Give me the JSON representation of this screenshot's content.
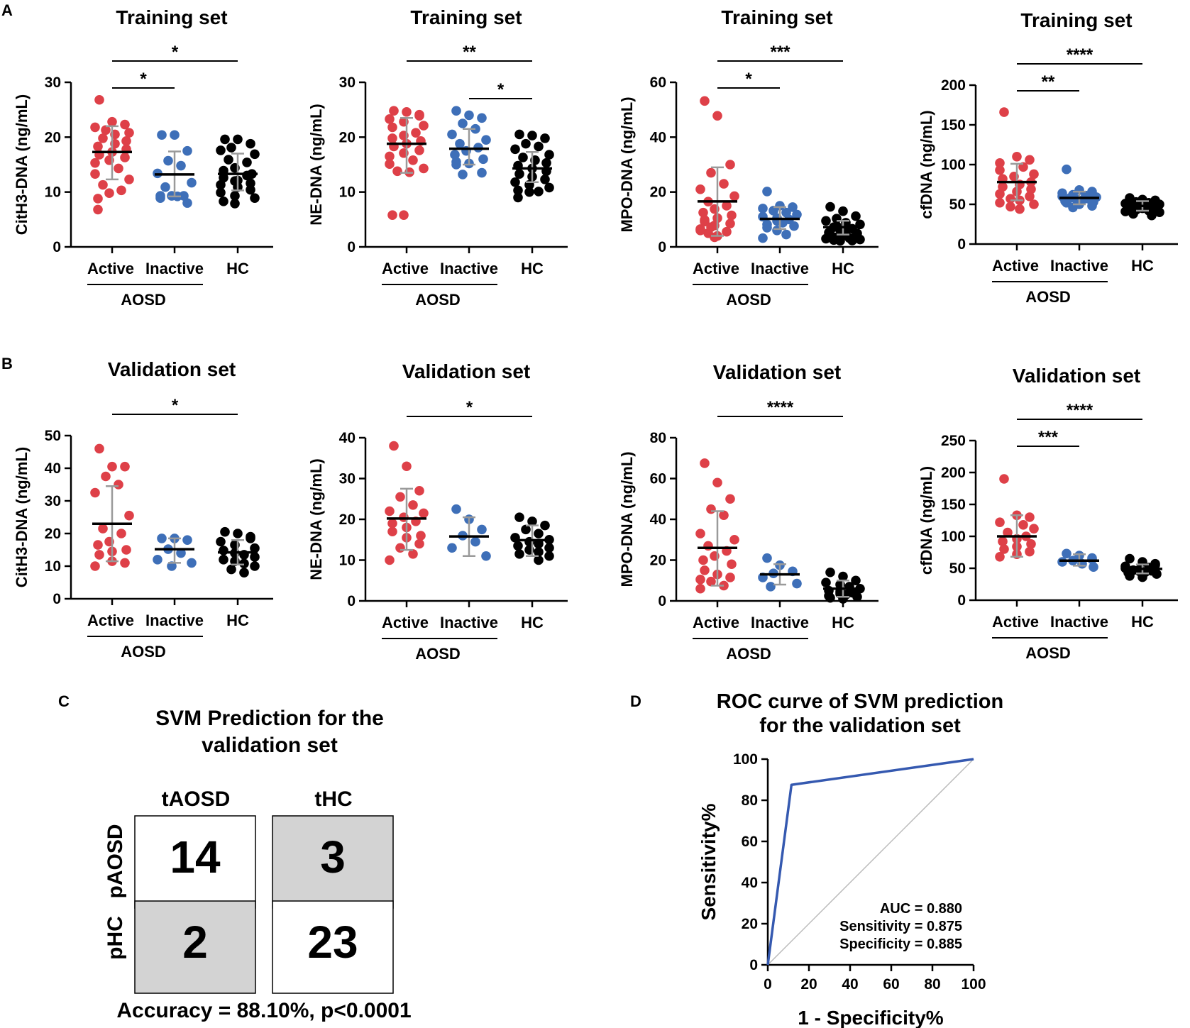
{
  "panel_labels": {
    "a": "A",
    "b": "B",
    "c": "C",
    "d": "D"
  },
  "colors": {
    "active": "#de4048",
    "inactive": "#3e6fb8",
    "hc": "#000000",
    "error_bar": "#9a9a9a",
    "roc_line": "#3559b0",
    "diagonal": "#bbbbbb",
    "cell_gray": "#d3d3d3"
  },
  "group_labels": {
    "active": "Active",
    "inactive": "Inactive",
    "hc": "HC",
    "aosd": "AOSD"
  },
  "chart_data": [
    {
      "id": "train-cith3",
      "type": "scatter",
      "title": "Training set",
      "ylabel": "CitH3-DNA (ng/mL)",
      "ylim": [
        0,
        30
      ],
      "yticks": [
        0,
        10,
        20,
        30
      ],
      "groups": [
        {
          "name": "Active",
          "mean": 17.3,
          "sd_low": 12.3,
          "sd_high": 22.0,
          "values": [
            26.8,
            22.8,
            22.3,
            21.3,
            21.8,
            20.8,
            20.5,
            19.8,
            19.3,
            18.8,
            18.3,
            17.8,
            17.3,
            16.8,
            16.3,
            15.8,
            15.3,
            14.3,
            13.3,
            12.3,
            11.3,
            10.3,
            9.8,
            8.8,
            6.8
          ]
        },
        {
          "name": "Inactive",
          "mean": 13.2,
          "sd_low": 9.2,
          "sd_high": 17.4,
          "values": [
            20.4,
            20.4,
            17.5,
            15.7,
            14.8,
            13.4,
            11.7,
            10.9,
            9.3,
            9.3,
            9.3,
            9.2,
            8.9,
            8.0
          ]
        },
        {
          "name": "HC",
          "mean": 13.3,
          "sd_low": 10.3,
          "sd_high": 17.0,
          "values": [
            19.6,
            19.6,
            18.8,
            18.1,
            17.6,
            16.9,
            15.9,
            15.4,
            14.4,
            13.9,
            13.3,
            12.6,
            12.1,
            11.6,
            11.3,
            10.9,
            10.4,
            9.9,
            9.3,
            8.9,
            8.3,
            7.9,
            13.0,
            12.0
          ]
        }
      ],
      "sig": [
        {
          "label": "*",
          "from": 0,
          "to": 2
        },
        {
          "label": "*",
          "from": 0,
          "to": 1
        }
      ]
    },
    {
      "id": "train-ne",
      "type": "scatter",
      "title": "Training set",
      "ylabel": "NE-DNA (ng/mL)",
      "ylim": [
        0,
        30
      ],
      "yticks": [
        0,
        10,
        20,
        30
      ],
      "groups": [
        {
          "name": "Active",
          "mean": 18.8,
          "sd_low": 13.5,
          "sd_high": 23.5,
          "values": [
            24.8,
            24.6,
            24.1,
            23.9,
            23.3,
            22.8,
            22.1,
            21.8,
            20.8,
            20.3,
            19.8,
            19.3,
            18.8,
            18.3,
            17.6,
            17.1,
            16.5,
            15.8,
            15.1,
            14.3,
            13.8,
            13.6,
            5.8,
            5.8
          ]
        },
        {
          "name": "Inactive",
          "mean": 17.9,
          "sd_low": 15.0,
          "sd_high": 21.5,
          "values": [
            24.8,
            24.0,
            23.5,
            22.5,
            21.5,
            20.5,
            19.5,
            18.8,
            18.1,
            17.5,
            16.8,
            16.0,
            15.5,
            15.2,
            15.0,
            13.5,
            13.2
          ]
        },
        {
          "name": "HC",
          "mean": 14.3,
          "sd_low": 11.8,
          "sd_high": 17.3,
          "values": [
            20.5,
            20.3,
            19.8,
            18.8,
            18.3,
            17.8,
            16.8,
            16.3,
            15.8,
            15.3,
            14.8,
            14.3,
            13.8,
            13.3,
            12.8,
            12.3,
            11.8,
            11.3,
            10.8,
            10.3,
            10.1,
            10.0,
            9.0
          ]
        }
      ],
      "sig": [
        {
          "label": "**",
          "from": 0,
          "to": 2
        },
        {
          "label": "*",
          "from": 1,
          "to": 2
        }
      ]
    },
    {
      "id": "train-mpo",
      "type": "scatter",
      "title": "Training set",
      "ylabel": "MPO-DNA (ng/mL)",
      "ylim": [
        0,
        60
      ],
      "yticks": [
        0,
        20,
        40,
        60
      ],
      "groups": [
        {
          "name": "Active",
          "mean": 16.6,
          "sd_low": 4.0,
          "sd_high": 29.0,
          "values": [
            53.2,
            47.8,
            30.0,
            27.0,
            23.0,
            21.0,
            18.5,
            16.5,
            15.0,
            13.8,
            12.5,
            11.5,
            10.5,
            9.8,
            9.2,
            8.5,
            7.8,
            7.2,
            6.5,
            6.0,
            5.5,
            5.0,
            4.0,
            3.5
          ]
        },
        {
          "name": "Inactive",
          "mean": 10.2,
          "sd_low": 6.5,
          "sd_high": 14.5,
          "values": [
            20.2,
            15.0,
            14.5,
            14.0,
            13.2,
            12.5,
            11.8,
            11.0,
            10.5,
            10.0,
            9.5,
            8.8,
            8.2,
            7.6,
            7.0,
            6.0,
            4.5,
            3.2
          ]
        },
        {
          "name": "HC",
          "mean": 7.2,
          "sd_low": 4.5,
          "sd_high": 9.5,
          "values": [
            14.6,
            13.0,
            11.2,
            10.3,
            9.5,
            8.8,
            8.2,
            7.6,
            7.2,
            6.6,
            6.2,
            5.7,
            5.2,
            4.9,
            4.5,
            4.2,
            3.8,
            3.5,
            3.2,
            3.0,
            2.7,
            2.5,
            2.3,
            2.2
          ]
        }
      ],
      "sig": [
        {
          "label": "***",
          "from": 0,
          "to": 2
        },
        {
          "label": "*",
          "from": 0,
          "to": 1
        }
      ]
    },
    {
      "id": "train-cfdna",
      "type": "scatter",
      "title": "Training set",
      "ylabel": "cfDNA (ng/mL)",
      "ylim": [
        0,
        200
      ],
      "yticks": [
        0,
        50,
        100,
        150,
        200
      ],
      "groups": [
        {
          "name": "Active",
          "mean": 78,
          "sd_low": 55,
          "sd_high": 101,
          "values": [
            166,
            110,
            106,
            102,
            97,
            93,
            88,
            85,
            82,
            78,
            75,
            72,
            69,
            66,
            63,
            60,
            57,
            55,
            52,
            50,
            47,
            44
          ]
        },
        {
          "name": "Inactive",
          "mean": 58,
          "sd_low": 50,
          "sd_high": 66,
          "values": [
            94,
            68,
            66,
            64,
            62,
            61,
            60,
            59,
            58,
            57,
            56,
            55,
            54,
            53,
            52,
            50,
            48,
            46
          ]
        },
        {
          "name": "HC",
          "mean": 48,
          "sd_low": 42,
          "sd_high": 54,
          "values": [
            58,
            56,
            55,
            54,
            53,
            52,
            51,
            50,
            50,
            49,
            48,
            48,
            47,
            46,
            46,
            45,
            44,
            43,
            42,
            41,
            40,
            38,
            36
          ]
        }
      ],
      "sig": [
        {
          "label": "****",
          "from": 0,
          "to": 2
        },
        {
          "label": "**",
          "from": 0,
          "to": 1
        }
      ]
    },
    {
      "id": "valid-cith3",
      "type": "scatter",
      "title": "Validation set",
      "ylabel": "CitH3-DNA (ng/mL)",
      "ylim": [
        0,
        50
      ],
      "yticks": [
        0,
        10,
        20,
        30,
        40,
        50
      ],
      "groups": [
        {
          "name": "Active",
          "mean": 23.0,
          "sd_low": 11.5,
          "sd_high": 34.5,
          "values": [
            46.0,
            40.5,
            40.5,
            37.5,
            35.0,
            32.5,
            25.5,
            21.5,
            20.0,
            17.5,
            16.5,
            15.0,
            14.5,
            13.5,
            11.5,
            11.0,
            10.0
          ]
        },
        {
          "name": "Inactive",
          "mean": 15.2,
          "sd_low": 11.0,
          "sd_high": 18.5,
          "values": [
            18.5,
            18.5,
            18.0,
            15.2,
            14.0,
            12.0,
            11.0,
            10.0
          ]
        },
        {
          "name": "HC",
          "mean": 14.2,
          "sd_low": 10.5,
          "sd_high": 18.0,
          "values": [
            20.5,
            20.0,
            19.0,
            18.5,
            17.5,
            16.5,
            15.5,
            14.8,
            14.0,
            13.5,
            12.8,
            12.0,
            11.5,
            10.8,
            10.0,
            9.0,
            8.0
          ]
        }
      ],
      "sig": [
        {
          "label": "*",
          "from": 0,
          "to": 2
        }
      ]
    },
    {
      "id": "valid-ne",
      "type": "scatter",
      "title": "Validation set",
      "ylabel": "NE-DNA (ng/mL)",
      "ylim": [
        0,
        40
      ],
      "yticks": [
        0,
        10,
        20,
        30,
        40
      ],
      "groups": [
        {
          "name": "Active",
          "mean": 20.2,
          "sd_low": 12.5,
          "sd_high": 27.5,
          "values": [
            38.0,
            33.0,
            27.0,
            25.5,
            23.5,
            22.0,
            21.5,
            20.5,
            19.5,
            19.0,
            18.0,
            17.0,
            16.0,
            15.5,
            14.0,
            13.0,
            11.5,
            10.0
          ]
        },
        {
          "name": "Inactive",
          "mean": 15.8,
          "sd_low": 11.0,
          "sd_high": 20.5,
          "values": [
            22.5,
            20.0,
            17.5,
            16.0,
            14.5,
            13.0,
            11.0
          ]
        },
        {
          "name": "HC",
          "mean": 14.9,
          "sd_low": 11.0,
          "sd_high": 18.5,
          "values": [
            20.5,
            19.5,
            18.5,
            17.5,
            16.5,
            15.5,
            15.0,
            14.5,
            14.0,
            13.5,
            13.0,
            12.5,
            12.0,
            11.5,
            11.0,
            10.0
          ]
        }
      ],
      "sig": [
        {
          "label": "*",
          "from": 0,
          "to": 2
        }
      ]
    },
    {
      "id": "valid-mpo",
      "type": "scatter",
      "title": "Validation set",
      "ylabel": "MPO-DNA (ng/mL)",
      "ylim": [
        0,
        80
      ],
      "yticks": [
        0,
        20,
        40,
        60,
        80
      ],
      "groups": [
        {
          "name": "Active",
          "mean": 26.0,
          "sd_low": 7.5,
          "sd_high": 44.0,
          "values": [
            67.5,
            58.0,
            50.0,
            45.0,
            42.0,
            33.0,
            30.0,
            27.0,
            24.5,
            22.0,
            20.0,
            18.0,
            15.0,
            13.0,
            11.5,
            10.5,
            9.5,
            7.5,
            6.0
          ]
        },
        {
          "name": "Inactive",
          "mean": 13.0,
          "sd_low": 8.0,
          "sd_high": 18.0,
          "values": [
            21.0,
            17.5,
            14.5,
            13.5,
            11.5,
            8.5,
            7.0
          ]
        },
        {
          "name": "HC",
          "mean": 6.0,
          "sd_low": 2.0,
          "sd_high": 10.0,
          "values": [
            14.0,
            12.0,
            10.0,
            9.0,
            8.0,
            7.0,
            6.0,
            5.0,
            4.5,
            4.0,
            3.5,
            3.0,
            2.5,
            2.0,
            1.5,
            1.0
          ]
        }
      ],
      "sig": [
        {
          "label": "****",
          "from": 0,
          "to": 2
        }
      ]
    },
    {
      "id": "valid-cfdna",
      "type": "scatter",
      "title": "Validation set",
      "ylabel": "cfDNA (ng/mL)",
      "ylim": [
        0,
        250
      ],
      "yticks": [
        0,
        50,
        100,
        150,
        200,
        250
      ],
      "groups": [
        {
          "name": "Active",
          "mean": 100,
          "sd_low": 68,
          "sd_high": 133,
          "values": [
            190,
            133,
            130,
            122,
            118,
            112,
            106,
            100,
            96,
            92,
            88,
            84,
            80,
            76,
            72,
            68
          ]
        },
        {
          "name": "Inactive",
          "mean": 62,
          "sd_low": 54,
          "sd_high": 72,
          "values": [
            73,
            70,
            66,
            64,
            62,
            60,
            57,
            52
          ]
        },
        {
          "name": "HC",
          "mean": 49,
          "sd_low": 42,
          "sd_high": 56,
          "values": [
            65,
            60,
            57,
            55,
            53,
            51,
            50,
            48,
            47,
            46,
            45,
            44,
            43,
            41,
            38,
            36
          ]
        }
      ],
      "sig": [
        {
          "label": "****",
          "from": 0,
          "to": 2
        },
        {
          "label": "***",
          "from": 0,
          "to": 1
        }
      ]
    },
    {
      "id": "roc",
      "type": "line",
      "title": "ROC curve of SVM prediction",
      "title2": "for the validation set",
      "xlabel": "1 - Specificity%",
      "ylabel": "Sensitivity%",
      "xlim": [
        0,
        100
      ],
      "ylim": [
        0,
        100
      ],
      "xticks": [
        0,
        20,
        40,
        60,
        80,
        100
      ],
      "yticks": [
        0,
        20,
        40,
        60,
        80,
        100
      ],
      "x": [
        0,
        11.5,
        100
      ],
      "y": [
        0,
        87.5,
        100
      ],
      "diagonal": true,
      "annotations": [
        "AUC = 0.880",
        "Sensitivity = 0.875",
        "Specificity = 0.885"
      ]
    }
  ],
  "confusion": {
    "title_line1": "SVM Prediction for the",
    "title_line2": "validation set",
    "col_headers": [
      "tAOSD",
      "tHC"
    ],
    "row_headers": [
      "pAOSD",
      "pHC"
    ],
    "cells": [
      [
        "14",
        "3"
      ],
      [
        "2",
        "23"
      ]
    ],
    "shaded": [
      [
        false,
        true
      ],
      [
        true,
        false
      ]
    ],
    "accuracy": "Accuracy = 88.10%, p<0.0001"
  }
}
